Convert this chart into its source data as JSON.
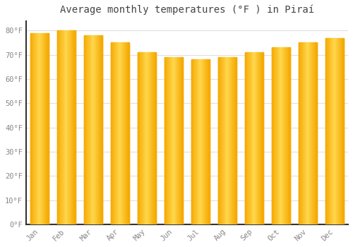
{
  "title": "Average monthly temperatures (°F ) in Piraí",
  "months": [
    "Jan",
    "Feb",
    "Mar",
    "Apr",
    "May",
    "Jun",
    "Jul",
    "Aug",
    "Sep",
    "Oct",
    "Nov",
    "Dec"
  ],
  "values": [
    79,
    80,
    78,
    75,
    71,
    69,
    68,
    69,
    71,
    73,
    75,
    77
  ],
  "bar_color_edge": "#F5A800",
  "bar_color_center": "#FFD84D",
  "background_color": "#FFFFFF",
  "grid_color": "#E0E0E0",
  "yticks": [
    0,
    10,
    20,
    30,
    40,
    50,
    60,
    70,
    80
  ],
  "ylim": [
    0,
    84
  ],
  "tick_label_color": "#888888",
  "title_color": "#444444",
  "spine_color": "#333333",
  "bar_width": 0.7,
  "gradient_steps": 50
}
